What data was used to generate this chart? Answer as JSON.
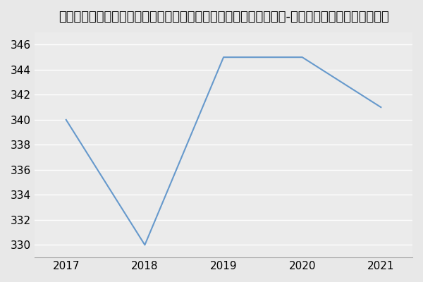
{
  "title": "浙江农林大学文法学院（外国语学院、茶文化学院）涉农商务英语（-历年复试）研究生录取分数线",
  "x": [
    2017,
    2018,
    2019,
    2020,
    2021
  ],
  "y": [
    340,
    330,
    345,
    345,
    341
  ],
  "line_color": "#6699cc",
  "background_color": "#e8e8e8",
  "plot_bg_color": "#ebebeb",
  "yticks": [
    330,
    332,
    334,
    336,
    338,
    340,
    342,
    344,
    346
  ],
  "ylim": [
    329,
    347
  ],
  "xlim": [
    2016.6,
    2021.4
  ],
  "xticks": [
    2017,
    2018,
    2019,
    2020,
    2021
  ],
  "title_fontsize": 13,
  "tick_fontsize": 11
}
